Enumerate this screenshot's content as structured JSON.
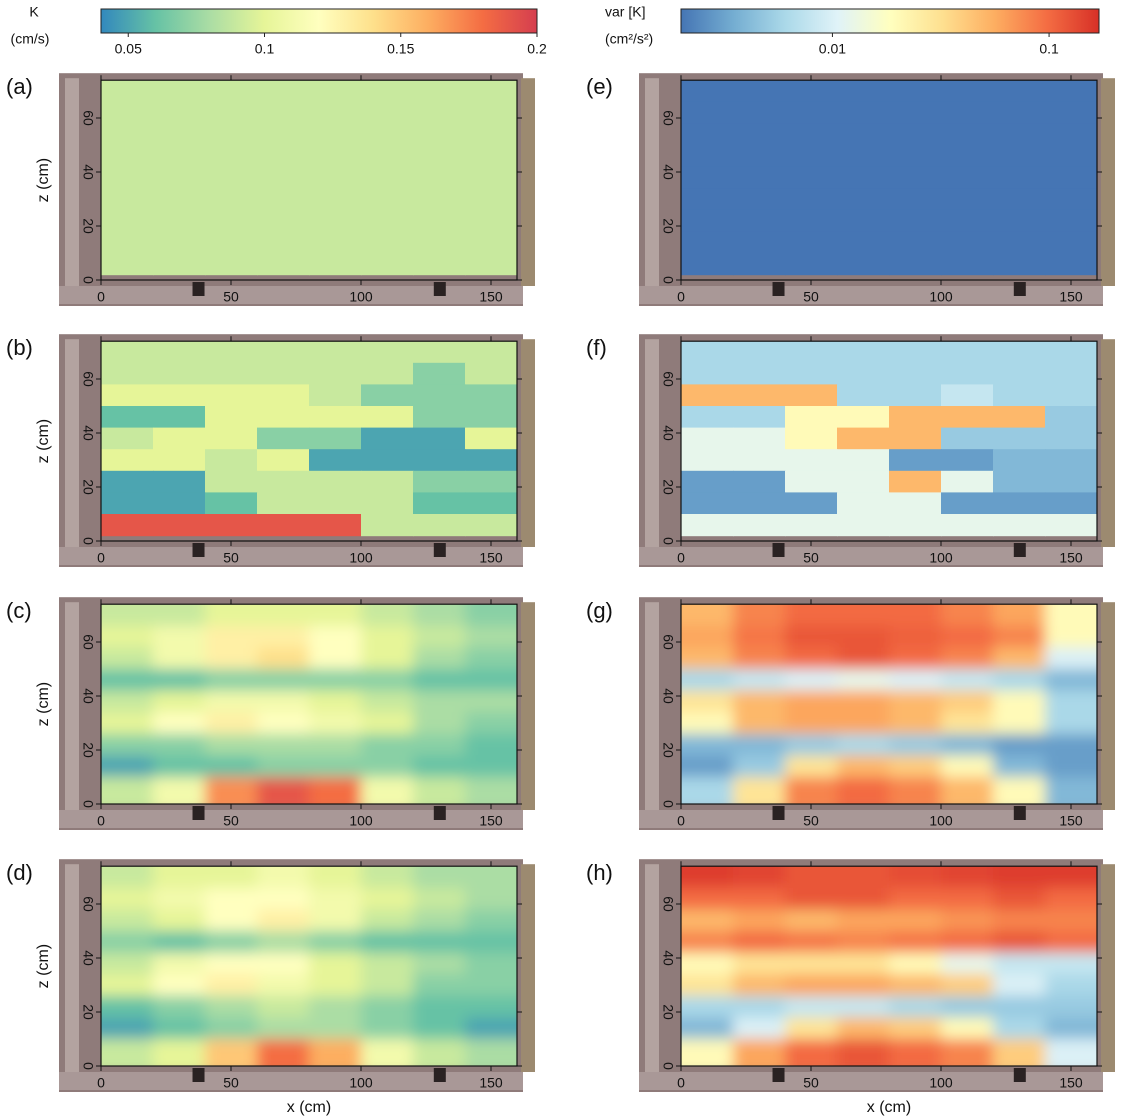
{
  "chart_data": [
    {
      "type": "heatmap",
      "colorbar_label": [
        "K",
        "(cm/s)"
      ],
      "clim": [
        0.04,
        0.2
      ],
      "cticks": [
        0.05,
        0.1,
        0.15,
        0.2
      ],
      "log_scale": false,
      "colormap": [
        "#3288bd",
        "#66c2a5",
        "#abdda4",
        "#e6f598",
        "#ffffbf",
        "#fee08b",
        "#fdae61",
        "#f46d43",
        "#d53e4f"
      ],
      "xlabel": "x (cm)",
      "ylabel": "z (cm)",
      "xlim": [
        0,
        160
      ],
      "ylim": [
        0,
        74
      ],
      "xticks": [
        0,
        50,
        100,
        150
      ],
      "yticks": [
        0,
        20,
        40,
        60
      ],
      "x": [
        10,
        30,
        50,
        70,
        90,
        110,
        130,
        150
      ],
      "z": [
        70,
        62,
        54,
        46,
        38,
        30,
        22,
        14,
        6
      ],
      "panels": [
        {
          "label": "(a)",
          "values": [
            [
              0.09,
              0.09,
              0.09,
              0.09,
              0.09,
              0.09,
              0.09,
              0.09
            ],
            [
              0.09,
              0.09,
              0.09,
              0.09,
              0.09,
              0.09,
              0.09,
              0.09
            ],
            [
              0.09,
              0.09,
              0.09,
              0.09,
              0.09,
              0.09,
              0.09,
              0.09
            ],
            [
              0.09,
              0.09,
              0.09,
              0.09,
              0.09,
              0.09,
              0.09,
              0.09
            ],
            [
              0.09,
              0.09,
              0.09,
              0.09,
              0.09,
              0.09,
              0.09,
              0.09
            ],
            [
              0.09,
              0.09,
              0.09,
              0.09,
              0.09,
              0.09,
              0.09,
              0.09
            ],
            [
              0.09,
              0.09,
              0.09,
              0.09,
              0.09,
              0.09,
              0.09,
              0.09
            ],
            [
              0.09,
              0.09,
              0.09,
              0.09,
              0.09,
              0.09,
              0.09,
              0.09
            ],
            [
              0.09,
              0.09,
              0.09,
              0.09,
              0.09,
              0.09,
              0.09,
              0.09
            ]
          ]
        },
        {
          "label": "(b)",
          "values": [
            [
              0.09,
              0.09,
              0.09,
              0.09,
              0.09,
              0.09,
              0.09,
              0.09
            ],
            [
              0.09,
              0.09,
              0.09,
              0.09,
              0.09,
              0.09,
              0.07,
              0.09
            ],
            [
              0.1,
              0.1,
              0.1,
              0.1,
              0.09,
              0.07,
              0.07,
              0.07
            ],
            [
              0.06,
              0.06,
              0.1,
              0.1,
              0.1,
              0.1,
              0.07,
              0.07
            ],
            [
              0.09,
              0.1,
              0.1,
              0.07,
              0.07,
              0.05,
              0.05,
              0.1
            ],
            [
              0.1,
              0.1,
              0.09,
              0.1,
              0.05,
              0.05,
              0.05,
              0.05
            ],
            [
              0.05,
              0.05,
              0.09,
              0.09,
              0.09,
              0.09,
              0.07,
              0.07
            ],
            [
              0.05,
              0.05,
              0.06,
              0.09,
              0.09,
              0.09,
              0.06,
              0.06
            ],
            [
              0.19,
              0.19,
              0.19,
              0.19,
              0.19,
              0.09,
              0.09,
              0.09
            ]
          ]
        },
        {
          "label": "(c)",
          "values": [
            [
              0.09,
              0.09,
              0.1,
              0.1,
              0.1,
              0.09,
              0.08,
              0.07
            ],
            [
              0.1,
              0.11,
              0.13,
              0.13,
              0.12,
              0.1,
              0.09,
              0.08
            ],
            [
              0.09,
              0.11,
              0.13,
              0.14,
              0.12,
              0.1,
              0.08,
              0.07
            ],
            [
              0.06,
              0.06,
              0.07,
              0.07,
              0.07,
              0.07,
              0.06,
              0.06
            ],
            [
              0.09,
              0.1,
              0.11,
              0.11,
              0.1,
              0.09,
              0.08,
              0.08
            ],
            [
              0.1,
              0.12,
              0.13,
              0.12,
              0.11,
              0.1,
              0.08,
              0.07
            ],
            [
              0.07,
              0.07,
              0.08,
              0.08,
              0.08,
              0.07,
              0.07,
              0.06
            ],
            [
              0.05,
              0.06,
              0.06,
              0.07,
              0.07,
              0.07,
              0.06,
              0.06
            ],
            [
              0.09,
              0.11,
              0.17,
              0.19,
              0.18,
              0.11,
              0.09,
              0.08
            ]
          ]
        },
        {
          "label": "(d)",
          "values": [
            [
              0.09,
              0.1,
              0.1,
              0.11,
              0.1,
              0.09,
              0.08,
              0.08
            ],
            [
              0.1,
              0.11,
              0.12,
              0.12,
              0.11,
              0.1,
              0.09,
              0.08
            ],
            [
              0.09,
              0.1,
              0.12,
              0.13,
              0.11,
              0.09,
              0.08,
              0.07
            ],
            [
              0.07,
              0.06,
              0.07,
              0.08,
              0.07,
              0.06,
              0.06,
              0.06
            ],
            [
              0.09,
              0.11,
              0.12,
              0.12,
              0.1,
              0.09,
              0.08,
              0.07
            ],
            [
              0.1,
              0.12,
              0.13,
              0.11,
              0.1,
              0.09,
              0.07,
              0.07
            ],
            [
              0.06,
              0.07,
              0.08,
              0.09,
              0.08,
              0.07,
              0.06,
              0.06
            ],
            [
              0.05,
              0.06,
              0.07,
              0.08,
              0.08,
              0.07,
              0.06,
              0.05
            ],
            [
              0.09,
              0.1,
              0.15,
              0.18,
              0.16,
              0.11,
              0.09,
              0.08
            ]
          ]
        }
      ]
    },
    {
      "type": "heatmap",
      "colorbar_label": [
        "var [K]",
        "(cm²/s²)"
      ],
      "clim": [
        0.002,
        0.17
      ],
      "cticks": [
        0.01,
        0.1
      ],
      "log_scale": true,
      "colormap": [
        "#4575b4",
        "#74add1",
        "#abd9e9",
        "#e0f3f8",
        "#ffffbf",
        "#fee090",
        "#fdae61",
        "#f46d43",
        "#d73027"
      ],
      "xlabel": "x (cm)",
      "xlim": [
        0,
        160
      ],
      "ylim": [
        0,
        74
      ],
      "xticks": [
        0,
        50,
        100,
        150
      ],
      "yticks": [
        0,
        20,
        40,
        60
      ],
      "x": [
        10,
        30,
        50,
        70,
        90,
        110,
        130,
        150
      ],
      "z": [
        70,
        62,
        54,
        46,
        38,
        30,
        22,
        14,
        6
      ],
      "panels": [
        {
          "label": "(e)",
          "values": [
            [
              0.002,
              0.002,
              0.002,
              0.002,
              0.002,
              0.002,
              0.002,
              0.002
            ],
            [
              0.002,
              0.002,
              0.002,
              0.002,
              0.002,
              0.002,
              0.002,
              0.002
            ],
            [
              0.002,
              0.002,
              0.002,
              0.002,
              0.002,
              0.002,
              0.002,
              0.002
            ],
            [
              0.002,
              0.002,
              0.002,
              0.002,
              0.002,
              0.002,
              0.002,
              0.002
            ],
            [
              0.002,
              0.002,
              0.002,
              0.002,
              0.002,
              0.002,
              0.002,
              0.002
            ],
            [
              0.002,
              0.002,
              0.002,
              0.002,
              0.002,
              0.002,
              0.002,
              0.002
            ],
            [
              0.002,
              0.002,
              0.002,
              0.002,
              0.002,
              0.002,
              0.002,
              0.002
            ],
            [
              0.002,
              0.002,
              0.002,
              0.002,
              0.002,
              0.002,
              0.002,
              0.002
            ],
            [
              0.002,
              0.002,
              0.002,
              0.002,
              0.002,
              0.002,
              0.002,
              0.002
            ]
          ]
        },
        {
          "label": "(f)",
          "values": [
            [
              0.006,
              0.006,
              0.006,
              0.006,
              0.006,
              0.006,
              0.006,
              0.006
            ],
            [
              0.006,
              0.006,
              0.006,
              0.006,
              0.006,
              0.006,
              0.006,
              0.006
            ],
            [
              0.05,
              0.05,
              0.05,
              0.006,
              0.006,
              0.008,
              0.006,
              0.006
            ],
            [
              0.006,
              0.006,
              0.02,
              0.02,
              0.05,
              0.05,
              0.05,
              0.005
            ],
            [
              0.012,
              0.012,
              0.02,
              0.05,
              0.05,
              0.005,
              0.005,
              0.005
            ],
            [
              0.012,
              0.012,
              0.012,
              0.012,
              0.003,
              0.003,
              0.004,
              0.004
            ],
            [
              0.003,
              0.003,
              0.012,
              0.012,
              0.05,
              0.012,
              0.004,
              0.004
            ],
            [
              0.003,
              0.003,
              0.003,
              0.012,
              0.012,
              0.003,
              0.003,
              0.003
            ],
            [
              0.012,
              0.012,
              0.012,
              0.012,
              0.012,
              0.012,
              0.012,
              0.012
            ]
          ]
        },
        {
          "label": "(g)",
          "values": [
            [
              0.05,
              0.08,
              0.1,
              0.1,
              0.1,
              0.08,
              0.06,
              0.02
            ],
            [
              0.06,
              0.09,
              0.12,
              0.12,
              0.11,
              0.1,
              0.08,
              0.02
            ],
            [
              0.05,
              0.08,
              0.1,
              0.12,
              0.1,
              0.08,
              0.05,
              0.01
            ],
            [
              0.006,
              0.008,
              0.01,
              0.012,
              0.01,
              0.008,
              0.006,
              0.004
            ],
            [
              0.03,
              0.05,
              0.06,
              0.06,
              0.05,
              0.04,
              0.02,
              0.006
            ],
            [
              0.02,
              0.05,
              0.06,
              0.06,
              0.05,
              0.03,
              0.02,
              0.006
            ],
            [
              0.004,
              0.004,
              0.005,
              0.006,
              0.005,
              0.004,
              0.003,
              0.003
            ],
            [
              0.003,
              0.005,
              0.03,
              0.05,
              0.04,
              0.02,
              0.004,
              0.003
            ],
            [
              0.006,
              0.03,
              0.08,
              0.1,
              0.08,
              0.05,
              0.02,
              0.004
            ]
          ]
        },
        {
          "label": "(h)",
          "values": [
            [
              0.15,
              0.14,
              0.12,
              0.12,
              0.13,
              0.14,
              0.15,
              0.15
            ],
            [
              0.1,
              0.1,
              0.12,
              0.12,
              0.1,
              0.1,
              0.12,
              0.1
            ],
            [
              0.05,
              0.06,
              0.05,
              0.06,
              0.06,
              0.07,
              0.08,
              0.08
            ],
            [
              0.08,
              0.1,
              0.09,
              0.08,
              0.09,
              0.1,
              0.12,
              0.1
            ],
            [
              0.02,
              0.03,
              0.03,
              0.03,
              0.02,
              0.012,
              0.008,
              0.008
            ],
            [
              0.03,
              0.05,
              0.06,
              0.06,
              0.05,
              0.04,
              0.01,
              0.006
            ],
            [
              0.006,
              0.006,
              0.008,
              0.008,
              0.006,
              0.005,
              0.005,
              0.005
            ],
            [
              0.004,
              0.01,
              0.03,
              0.05,
              0.04,
              0.02,
              0.006,
              0.004
            ],
            [
              0.02,
              0.06,
              0.1,
              0.12,
              0.1,
              0.08,
              0.04,
              0.01
            ]
          ]
        }
      ]
    }
  ]
}
